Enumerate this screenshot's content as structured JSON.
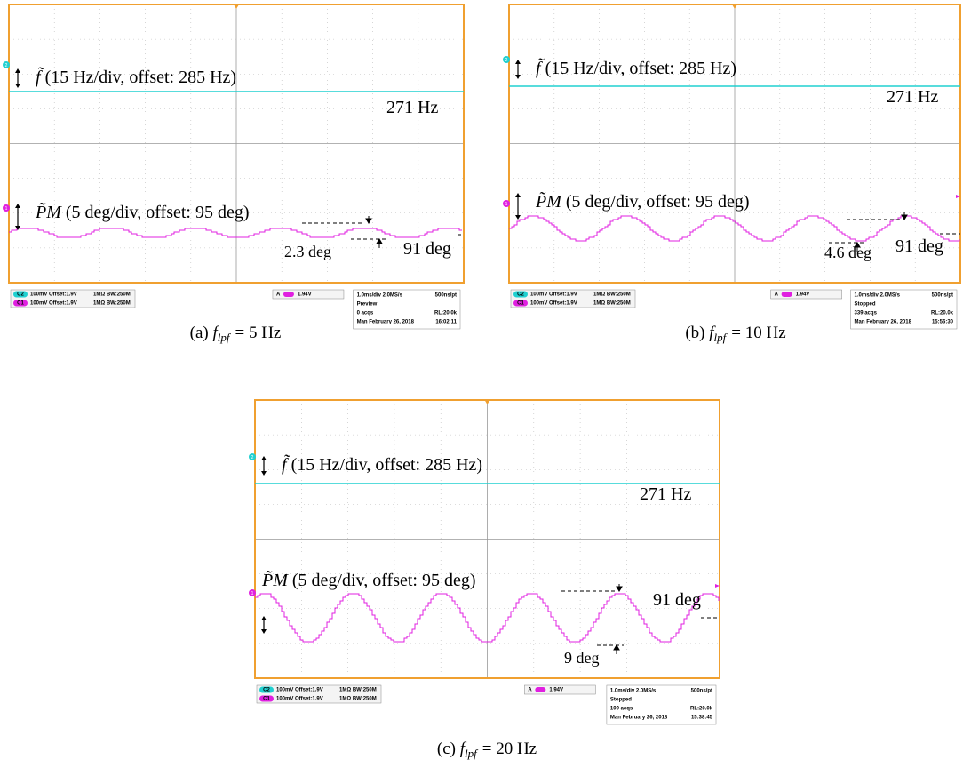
{
  "panels": [
    {
      "channel_f": "2",
      "channel_pm": "1",
      "f_symbol": "f̃",
      "f_label": "(15 Hz/div, offset: 285 Hz)",
      "f_value": "271 Hz",
      "pm_symbol": "P̃M",
      "pm_label": "(5 deg/div, offset: 95 deg)",
      "pm_value": "91 deg",
      "pm_swing": "2.3 deg",
      "status": {
        "ch2_badge": "C2",
        "ch2": "100mV  Offset:1.9V",
        "ch2_imp": "1MΩ BW:250M",
        "ch1_badge": "C1",
        "ch1": "100mV  Offset:1.9V",
        "ch1_imp": "1MΩ BW:250M",
        "trigger_source": "A",
        "trigger_level": "1.94V",
        "timebase": "1.0ms/div  2.0MS/s",
        "sample": "500ns/pt",
        "mode": "Preview",
        "acqs": "0 acqs",
        "record": "RL:20.0k",
        "date": "Man   February 26, 2018",
        "time": "16:02:11"
      },
      "caption": {
        "tag": "(a)",
        "var": "f",
        "sub": "lpf",
        "rest": "= 5 Hz"
      }
    },
    {
      "channel_f": "2",
      "channel_pm": "1",
      "f_symbol": "f̃",
      "f_label": "(15 Hz/div, offset: 285 Hz)",
      "f_value": "271 Hz",
      "pm_symbol": "P̃M",
      "pm_label": "(5 deg/div, offset: 95 deg)",
      "pm_value": "91 deg",
      "pm_swing": "4.6 deg",
      "status": {
        "ch2_badge": "C2",
        "ch2": "100mV  Offset:1.9V",
        "ch2_imp": "1MΩ BW:250M",
        "ch1_badge": "C1",
        "ch1": "100mV  Offset:1.9V",
        "ch1_imp": "1MΩ BW:250M",
        "trigger_source": "A",
        "trigger_level": "1.94V",
        "timebase": "1.0ms/div  2.0MS/s",
        "sample": "500ns/pt",
        "mode": "Stopped",
        "acqs": "339 acqs",
        "record": "RL:20.0k",
        "date": "Man   February 26, 2018",
        "time": "15:56:30"
      },
      "caption": {
        "tag": "(b)",
        "var": "f",
        "sub": "lpf",
        "rest": "= 10 Hz"
      }
    },
    {
      "channel_f": "2",
      "channel_pm": "1",
      "f_symbol": "f̃",
      "f_label": "(15 Hz/div, offset: 285 Hz)",
      "f_value": "271 Hz",
      "pm_symbol": "P̃M",
      "pm_label": "(5 deg/div, offset: 95 deg)",
      "pm_value": "91 deg",
      "pm_swing": "9 deg",
      "status": {
        "ch2_badge": "C2",
        "ch2": "100mV  Offset:1.9V",
        "ch2_imp": "1MΩ BW:250M",
        "ch1_badge": "C1",
        "ch1": "100mV  Offset:1.9V",
        "ch1_imp": "1MΩ BW:250M",
        "trigger_source": "A",
        "trigger_level": "1.94V",
        "timebase": "1.0ms/div  2.0MS/s",
        "sample": "500ns/pt",
        "mode": "Stopped",
        "acqs": "109 acqs",
        "record": "RL:20.0k",
        "date": "Man   February 26, 2018",
        "time": "15:38:45"
      },
      "caption": {
        "tag": "(c)",
        "var": "f",
        "sub": "lpf",
        "rest": "= 20 Hz"
      }
    }
  ]
}
